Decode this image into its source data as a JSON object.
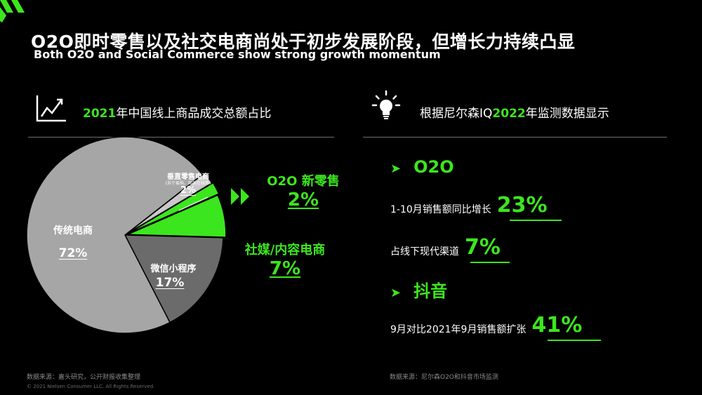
{
  "header": {
    "title": "O2O即时零售以及社交电商尚处于初步发展阶段，但增长力持续凸显",
    "subtitle": "Both O2O and Social Commerce show strong growth momentum"
  },
  "left": {
    "title_year": "2021",
    "title_rest": "年中国线上商品成交总额占比"
  },
  "right": {
    "title_prefix": "根据尼尔森IQ",
    "title_year": "2022",
    "title_suffix": "年监测数据显示",
    "o2o": {
      "bullet": "O2O",
      "metrics": [
        {
          "label": "1-10月销售额同比增长",
          "value": "23%"
        },
        {
          "label": "占线下现代渠道",
          "value": "7%"
        }
      ]
    },
    "douyin": {
      "bullet": "抖音",
      "metrics": [
        {
          "label": "9月对比2021年9月销售额扩张",
          "value": "41%"
        }
      ]
    }
  },
  "chart_data": {
    "type": "pie",
    "title": "2021年中国线上商品成交总额占比",
    "slices": [
      {
        "label": "传统电商",
        "value": 72,
        "display": "72%",
        "color": "#a6a6a6"
      },
      {
        "label": "微信小程序",
        "value": 17,
        "display": "17%",
        "color": "#6b6b6b"
      },
      {
        "label": "社媒/内容电商",
        "value": 7,
        "display": "7%",
        "color": "#3ce61e"
      },
      {
        "label": "O2O 新零售",
        "value": 2,
        "display": "2%",
        "color": "#3ce61e"
      },
      {
        "label": "垂直零售电商",
        "sublabel": "(苏宁易购、国美在线等)",
        "value": 2,
        "display": "2%",
        "color": "#c9c9c9"
      }
    ]
  },
  "colors": {
    "accent": "#3ce61e",
    "background": "#000000"
  },
  "footer": {
    "left_source": "数据来源：嘉头研究，公开财报收集整理",
    "copyright": "© 2021 Nielsen Consumer LLC. All Rights Reserved.",
    "right_source": "数据来源：尼尔森O2O和抖音市场监测"
  }
}
